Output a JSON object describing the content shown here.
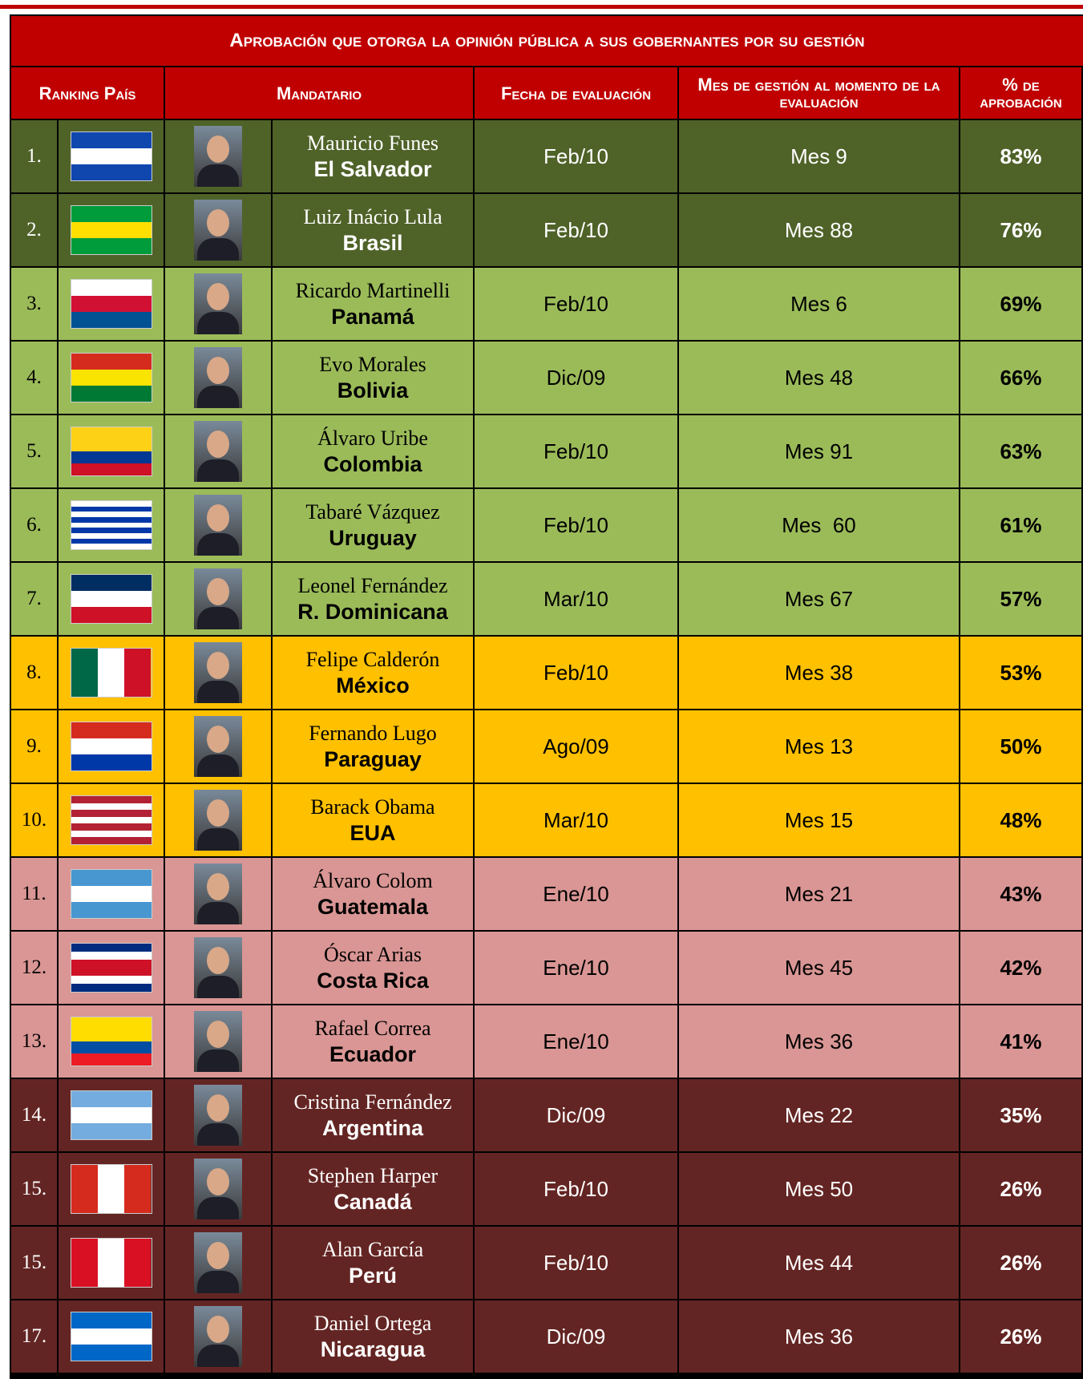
{
  "title": "Aprobación que otorga la opinión pública a sus gobernantes por su gestión",
  "header": {
    "rank": "Ranking País",
    "leader": "Mandatario",
    "date": "Fecha de evaluación",
    "month": "Mes de gestión al momento de la evaluación",
    "approval": "% de aprobación"
  },
  "rows": [
    {
      "rank": "1.",
      "name": "Mauricio Funes",
      "country": "El Salvador",
      "date": "Feb/10",
      "month": "Mes 9",
      "approval": "83%"
    },
    {
      "rank": "2.",
      "name": "Luiz Inácio Lula",
      "country": "Brasil",
      "date": "Feb/10",
      "month": "Mes 88",
      "approval": "76%"
    },
    {
      "rank": "3.",
      "name": "Ricardo Martinelli",
      "country": "Panamá",
      "date": "Feb/10",
      "month": "Mes 6",
      "approval": "69%"
    },
    {
      "rank": "4.",
      "name": "Evo Morales",
      "country": "Bolivia",
      "date": "Dic/09",
      "month": "Mes 48",
      "approval": "66%"
    },
    {
      "rank": "5.",
      "name": "Álvaro Uribe",
      "country": "Colombia",
      "date": "Feb/10",
      "month": "Mes 91",
      "approval": "63%"
    },
    {
      "rank": "6.",
      "name": "Tabaré Vázquez",
      "country": "Uruguay",
      "date": "Feb/10",
      "month": "Mes  60",
      "approval": "61%"
    },
    {
      "rank": "7.",
      "name": "Leonel Fernández",
      "country": "R. Dominicana",
      "date": "Mar/10",
      "month": "Mes 67",
      "approval": "57%"
    },
    {
      "rank": "8.",
      "name": "Felipe Calderón",
      "country": "México",
      "date": "Feb/10",
      "month": "Mes 38",
      "approval": "53%"
    },
    {
      "rank": "9.",
      "name": "Fernando Lugo",
      "country": "Paraguay",
      "date": "Ago/09",
      "month": "Mes 13",
      "approval": "50%"
    },
    {
      "rank": "10.",
      "name": "Barack Obama",
      "country": "EUA",
      "date": "Mar/10",
      "month": "Mes 15",
      "approval": "48%"
    },
    {
      "rank": "11.",
      "name": "Álvaro Colom",
      "country": "Guatemala",
      "date": "Ene/10",
      "month": "Mes 21",
      "approval": "43%"
    },
    {
      "rank": "12.",
      "name": "Óscar Arias",
      "country": "Costa Rica",
      "date": "Ene/10",
      "month": "Mes 45",
      "approval": "42%"
    },
    {
      "rank": "13.",
      "name": "Rafael Correa",
      "country": "Ecuador",
      "date": "Ene/10",
      "month": "Mes 36",
      "approval": "41%"
    },
    {
      "rank": "14.",
      "name": "Cristina Fernández",
      "country": "Argentina",
      "date": "Dic/09",
      "month": "Mes 22",
      "approval": "35%"
    },
    {
      "rank": "15.",
      "name": "Stephen Harper",
      "country": "Canadá",
      "date": "Feb/10",
      "month": "Mes 50",
      "approval": "26%"
    },
    {
      "rank": "15.",
      "name": "Alan García",
      "country": "Perú",
      "date": "Feb/10",
      "month": "Mes 44",
      "approval": "26%"
    },
    {
      "rank": "17.",
      "name": "Daniel Ortega",
      "country": "Nicaragua",
      "date": "Dic/09",
      "month": "Mes 36",
      "approval": "26%"
    }
  ]
}
